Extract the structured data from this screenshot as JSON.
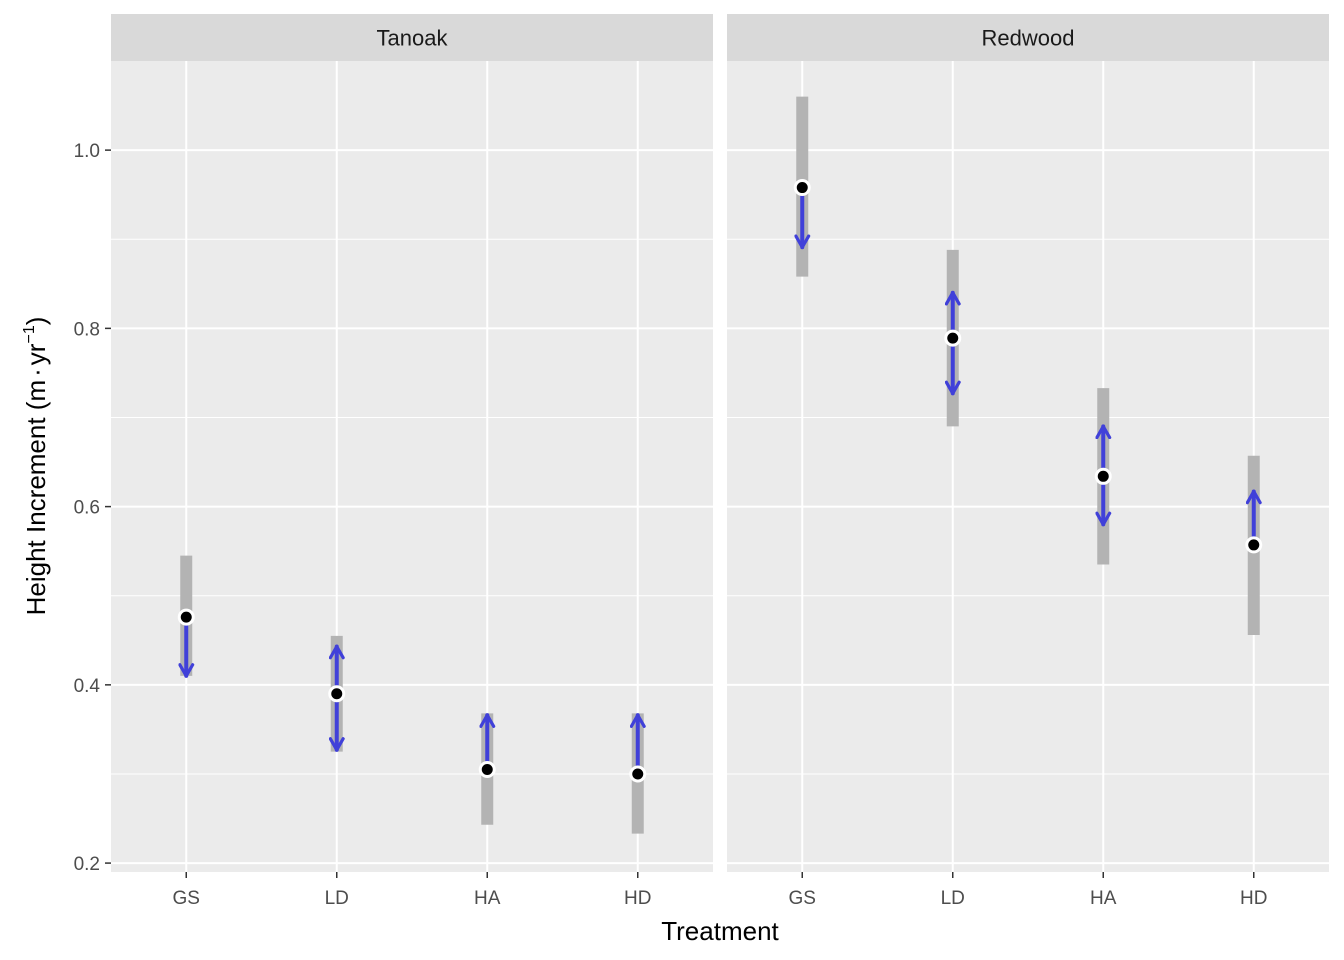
{
  "chart_data": {
    "type": "scatter",
    "xlabel": "Treatment",
    "ylabel": {
      "main": "Height Increment ",
      "open": "(",
      "unit1": "m",
      "dot": "·",
      "unit2": "yr",
      "exponent": "−1",
      "close": ")"
    },
    "categories": [
      "GS",
      "LD",
      "HA",
      "HD"
    ],
    "ylim": [
      0.19,
      1.1
    ],
    "yticks": [
      0.2,
      0.4,
      0.6,
      0.8,
      1.0
    ],
    "ytick_labels": [
      "0.2",
      "0.4",
      "0.6",
      "0.8",
      "1.0"
    ],
    "grid": true,
    "colors": {
      "panel_bg": "#EBEBEB",
      "strip_bg": "#D9D9D9",
      "grid": "#FFFFFF",
      "interval": "#B3B3B3",
      "arrow": "#4040D9",
      "point": "#000000"
    },
    "facets": [
      {
        "name": "Tanoak",
        "points": [
          {
            "x": "GS",
            "y": 0.476,
            "low": 0.41,
            "high": 0.545,
            "arrows": [
              {
                "from": 0.476,
                "to": 0.41
              }
            ]
          },
          {
            "x": "LD",
            "y": 0.39,
            "low": 0.325,
            "high": 0.455,
            "arrows": [
              {
                "from": 0.39,
                "to": 0.443
              },
              {
                "from": 0.39,
                "to": 0.327
              }
            ]
          },
          {
            "x": "HA",
            "y": 0.305,
            "low": 0.243,
            "high": 0.368,
            "arrows": [
              {
                "from": 0.305,
                "to": 0.366
              }
            ]
          },
          {
            "x": "HD",
            "y": 0.3,
            "low": 0.233,
            "high": 0.368,
            "arrows": [
              {
                "from": 0.3,
                "to": 0.366
              }
            ]
          }
        ]
      },
      {
        "name": "Redwood",
        "points": [
          {
            "x": "GS",
            "y": 0.958,
            "low": 0.858,
            "high": 1.06,
            "arrows": [
              {
                "from": 0.958,
                "to": 0.891
              }
            ]
          },
          {
            "x": "LD",
            "y": 0.789,
            "low": 0.69,
            "high": 0.888,
            "arrows": [
              {
                "from": 0.789,
                "to": 0.84
              },
              {
                "from": 0.789,
                "to": 0.727
              }
            ]
          },
          {
            "x": "HA",
            "y": 0.634,
            "low": 0.535,
            "high": 0.733,
            "arrows": [
              {
                "from": 0.634,
                "to": 0.69
              },
              {
                "from": 0.634,
                "to": 0.58
              }
            ]
          },
          {
            "x": "HD",
            "y": 0.557,
            "low": 0.456,
            "high": 0.657,
            "arrows": [
              {
                "from": 0.557,
                "to": 0.617
              }
            ]
          }
        ]
      }
    ]
  }
}
